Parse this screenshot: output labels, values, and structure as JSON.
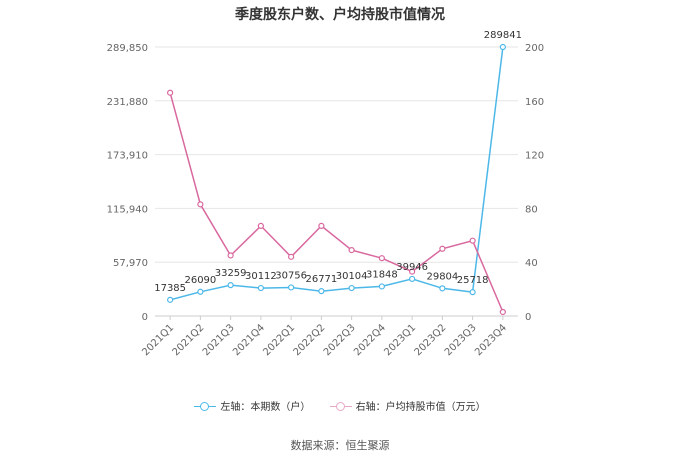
{
  "chart_data": {
    "type": "line",
    "title": "季度股东户数、户均持股市值情况",
    "categories": [
      "2021Q1",
      "2021Q2",
      "2021Q3",
      "2021Q4",
      "2022Q1",
      "2022Q2",
      "2022Q3",
      "2022Q4",
      "2023Q1",
      "2023Q2",
      "2023Q3",
      "2023Q4"
    ],
    "left_axis": {
      "ticks": [
        "0",
        "57,970",
        "115,940",
        "173,910",
        "231,880",
        "289,850"
      ],
      "ylim": [
        0,
        289850
      ]
    },
    "right_axis": {
      "ticks": [
        "0",
        "40",
        "80",
        "120",
        "160",
        "200"
      ],
      "ylim": [
        0,
        200
      ]
    },
    "series": [
      {
        "name": "左轴：本期数（户）",
        "axis": "left",
        "color": "#4db8e8",
        "values": [
          17385,
          26090,
          33259,
          30112,
          30756,
          26771,
          30104,
          31848,
          39946,
          29804,
          25718,
          289841
        ],
        "labels": [
          "17385",
          "26090",
          "33259",
          "30112",
          "30756",
          "26771",
          "30104",
          "31848",
          "39946",
          "29804",
          "25718",
          "289841"
        ]
      },
      {
        "name": "右轴：户均持股市值（万元）",
        "axis": "right",
        "color": "#d9689f",
        "values": [
          166,
          83,
          45,
          67,
          44,
          67,
          49,
          43,
          33,
          50,
          56,
          3
        ]
      }
    ],
    "grid": true,
    "legend_position": "bottom"
  },
  "source": "数据来源：恒生聚源"
}
